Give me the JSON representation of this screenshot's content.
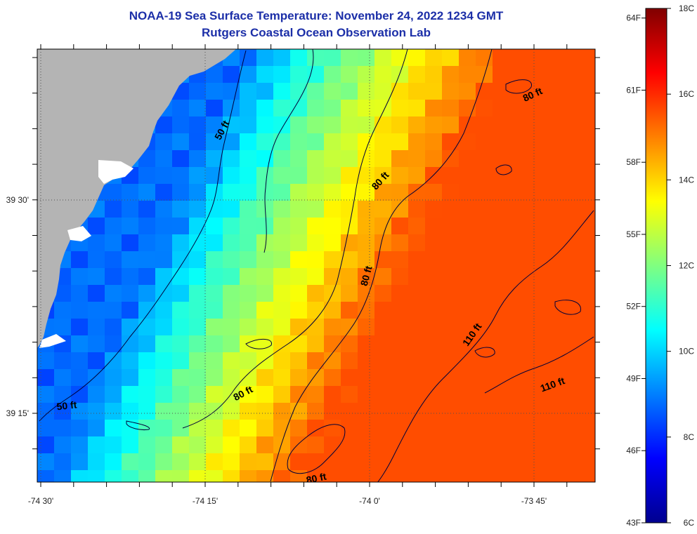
{
  "title": {
    "line1": "NOAA-19 Sea Surface Temperature:  November 24, 2022 1234 GMT",
    "line2": "Rutgers Coastal Ocean Observation Lab"
  },
  "map": {
    "lon_ticks": [
      {
        "value": -74.5,
        "label": "-74 30'"
      },
      {
        "value": -74.25,
        "label": "-74 15'"
      },
      {
        "value": -74.0,
        "label": "-74 0'"
      },
      {
        "value": -73.75,
        "label": "-73 45'"
      }
    ],
    "lat_ticks": [
      {
        "value": 39.5,
        "label": "39 30'"
      },
      {
        "value": 39.25,
        "label": "39 15'"
      }
    ],
    "contour_labels": [
      {
        "text": "50 ft",
        "lon": -74.22,
        "lat": 39.58,
        "angle": -62
      },
      {
        "text": "80 ft",
        "lon": -73.98,
        "lat": 39.52,
        "angle": -48
      },
      {
        "text": "80 ft",
        "lon": -73.75,
        "lat": 39.62,
        "angle": -25
      },
      {
        "text": "80 ft",
        "lon": -74.0,
        "lat": 39.41,
        "angle": -75
      },
      {
        "text": "110 ft",
        "lon": -73.84,
        "lat": 39.34,
        "angle": -55
      },
      {
        "text": "110 ft",
        "lon": -73.72,
        "lat": 39.28,
        "angle": -20
      },
      {
        "text": "50 ft",
        "lon": -74.46,
        "lat": 39.255,
        "angle": -6
      },
      {
        "text": "80 ft",
        "lon": -74.19,
        "lat": 39.27,
        "angle": -28
      },
      {
        "text": "80 ft",
        "lon": -74.08,
        "lat": 39.17,
        "angle": -12
      }
    ]
  },
  "colorbar": {
    "celsius_labels": [
      "18C",
      "16C",
      "14C",
      "12C",
      "10C",
      "8C",
      "6C"
    ],
    "fahrenheit_labels": [
      "64F",
      "61F",
      "58F",
      "55F",
      "52F",
      "49F",
      "46F",
      "43F"
    ],
    "c_min": 6,
    "c_max": 18,
    "f_min": 43,
    "f_max": 64.4
  },
  "colors": {
    "land": "#b4b4b4",
    "sst_cold": "#00008f",
    "sst_warm": "#800000"
  }
}
